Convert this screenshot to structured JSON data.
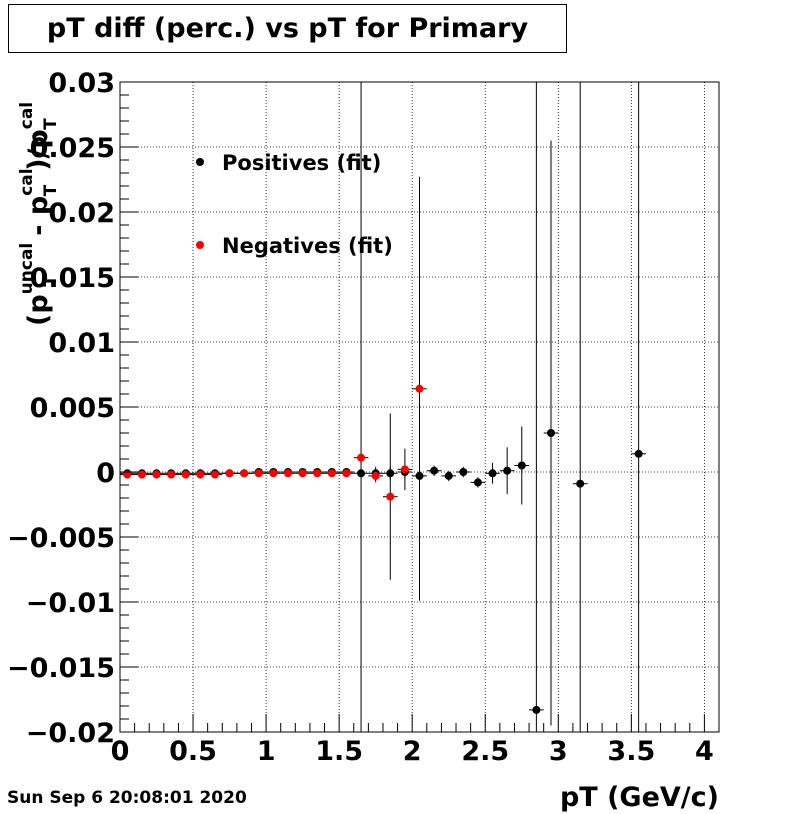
{
  "chart_data": {
    "type": "scatter",
    "title": "pT diff (perc.) vs pT for Primary",
    "xlabel": "pT (GeV/c)",
    "ylabel": "(p_T^uncal - p_T^cal)/p_T^cal",
    "ylabel_parts": {
      "open": "(p",
      "sup1": "uncal",
      "sub1": "T",
      "minus": " - p",
      "sup2": "cal",
      "sub2": "T",
      "close": ")/p",
      "sup3": "cal",
      "sub3": "T"
    },
    "xlim": [
      0,
      4.1
    ],
    "ylim": [
      -0.02,
      0.03
    ],
    "xticks": [
      0,
      0.5,
      1,
      1.5,
      2,
      2.5,
      3,
      3.5,
      4
    ],
    "xtick_labels": [
      "0",
      "0.5",
      "1",
      "1.5",
      "2",
      "2.5",
      "3",
      "3.5",
      "4"
    ],
    "yticks": [
      -0.02,
      -0.015,
      -0.01,
      -0.005,
      0,
      0.005,
      0.01,
      0.015,
      0.02,
      0.025,
      0.03
    ],
    "ytick_labels": [
      "−0.02",
      "−0.015",
      "−0.01",
      "−0.005",
      "0",
      "0.005",
      "0.01",
      "0.015",
      "0.02",
      "0.025",
      "0.03"
    ],
    "grid": true,
    "legend_position": "top-left",
    "series": [
      {
        "name": "Positives (fit)",
        "color": "#000000",
        "points": [
          {
            "x": 0.05,
            "y": -0.0001,
            "yerr": 0.0001
          },
          {
            "x": 0.15,
            "y": -0.0001,
            "yerr": 0.0001
          },
          {
            "x": 0.25,
            "y": -0.0001,
            "yerr": 0.0001
          },
          {
            "x": 0.35,
            "y": -0.0001,
            "yerr": 0.0001
          },
          {
            "x": 0.45,
            "y": -0.0001,
            "yerr": 0.0001
          },
          {
            "x": 0.55,
            "y": -0.0001,
            "yerr": 0.0001
          },
          {
            "x": 0.65,
            "y": -0.0001,
            "yerr": 0.0001
          },
          {
            "x": 0.75,
            "y": -0.0001,
            "yerr": 0.0001
          },
          {
            "x": 0.85,
            "y": -0.0001,
            "yerr": 0.0001
          },
          {
            "x": 0.95,
            "y": 0.0,
            "yerr": 0.0001
          },
          {
            "x": 1.05,
            "y": 0.0,
            "yerr": 0.0001
          },
          {
            "x": 1.15,
            "y": 0.0,
            "yerr": 0.0001
          },
          {
            "x": 1.25,
            "y": 0.0,
            "yerr": 0.0001
          },
          {
            "x": 1.35,
            "y": 0.0,
            "yerr": 0.0001
          },
          {
            "x": 1.45,
            "y": 0.0,
            "yerr": 0.0001
          },
          {
            "x": 1.55,
            "y": 0.0,
            "yerr": 0.0001
          },
          {
            "x": 1.65,
            "y": -0.0001,
            "yerr": 0.05
          },
          {
            "x": 1.75,
            "y": -0.0001,
            "yerr": 0.0005
          },
          {
            "x": 1.85,
            "y": -0.0001,
            "yerr": 0.0005
          },
          {
            "x": 1.95,
            "y": 0.0,
            "yerr": 0.0005
          },
          {
            "x": 2.05,
            "y": -0.0003,
            "yerr": 0.0005
          },
          {
            "x": 2.15,
            "y": 0.0001,
            "yerr": 0.0004
          },
          {
            "x": 2.25,
            "y": -0.0003,
            "yerr": 0.0004
          },
          {
            "x": 2.35,
            "y": 0.0,
            "yerr": 0.0004
          },
          {
            "x": 2.45,
            "y": -0.0008,
            "yerr": 0.0004
          },
          {
            "x": 2.55,
            "y": -0.0001,
            "yerr": 0.0008
          },
          {
            "x": 2.65,
            "y": 0.0001,
            "yerr": 0.0018
          },
          {
            "x": 2.75,
            "y": 0.0005,
            "yerr": 0.003
          },
          {
            "x": 2.85,
            "y": -0.0183,
            "yerr": 0.05
          },
          {
            "x": 2.95,
            "y": 0.003,
            "yerr": 0.0225
          },
          {
            "x": 3.15,
            "y": -0.0009,
            "yerr": 0.05
          },
          {
            "x": 3.55,
            "y": 0.0014,
            "yerr": 0.05
          }
        ]
      },
      {
        "name": "Negatives (fit)",
        "color": "#ff0000",
        "points": [
          {
            "x": 0.05,
            "y": -0.0002,
            "yerr": 0.0001
          },
          {
            "x": 0.15,
            "y": -0.0002,
            "yerr": 0.0001
          },
          {
            "x": 0.25,
            "y": -0.0002,
            "yerr": 0.0001
          },
          {
            "x": 0.35,
            "y": -0.0002,
            "yerr": 0.0001
          },
          {
            "x": 0.45,
            "y": -0.0002,
            "yerr": 0.0001
          },
          {
            "x": 0.55,
            "y": -0.0002,
            "yerr": 0.0001
          },
          {
            "x": 0.65,
            "y": -0.0002,
            "yerr": 0.0001
          },
          {
            "x": 0.75,
            "y": -0.0001,
            "yerr": 0.0001
          },
          {
            "x": 0.85,
            "y": -0.0001,
            "yerr": 0.0001
          },
          {
            "x": 0.95,
            "y": -0.0001,
            "yerr": 0.0001
          },
          {
            "x": 1.05,
            "y": -0.0001,
            "yerr": 0.0001
          },
          {
            "x": 1.15,
            "y": -0.0001,
            "yerr": 0.0001
          },
          {
            "x": 1.25,
            "y": -0.0001,
            "yerr": 0.0001
          },
          {
            "x": 1.35,
            "y": -0.0001,
            "yerr": 0.0001
          },
          {
            "x": 1.45,
            "y": -0.0001,
            "yerr": 0.0001
          },
          {
            "x": 1.55,
            "y": -0.0001,
            "yerr": 0.0001
          },
          {
            "x": 1.65,
            "y": 0.0011,
            "yerr": 0.0004
          },
          {
            "x": 1.75,
            "y": -0.0003,
            "yerr": 0.0005
          },
          {
            "x": 1.85,
            "y": -0.0019,
            "yerr": 0.0064
          },
          {
            "x": 1.95,
            "y": 0.0002,
            "yerr": 0.0016
          },
          {
            "x": 2.05,
            "y": 0.0064,
            "yerr": 0.0163
          }
        ]
      }
    ]
  },
  "footer": {
    "timestamp": "Sun Sep  6 20:08:01 2020"
  }
}
